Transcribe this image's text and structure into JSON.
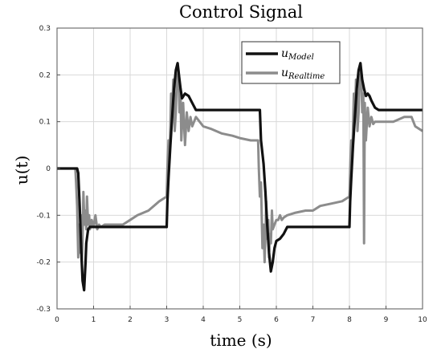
{
  "chart_data": {
    "type": "line",
    "title": "Control Signal",
    "xlabel": "time (s)",
    "ylabel": "u(t)",
    "xlim": [
      0,
      10
    ],
    "ylim": [
      -0.3,
      0.3
    ],
    "x_ticks": [
      "0",
      "1",
      "2",
      "3",
      "4",
      "5",
      "6",
      "7",
      "8",
      "9",
      "10"
    ],
    "y_ticks": [
      "-0.3",
      "-0.2",
      "-0.1",
      "0",
      "0.1",
      "0.2",
      "0.3"
    ],
    "grid": true,
    "legend_position": "top-right",
    "series": [
      {
        "name": "u",
        "name_sub": "Model",
        "color": "#111111",
        "x": [
          0,
          0.55,
          0.58,
          0.62,
          0.66,
          0.7,
          0.74,
          0.78,
          0.8,
          0.85,
          0.9,
          1.0,
          1.2,
          1.5,
          2.0,
          2.5,
          3.0,
          3.02,
          3.05,
          3.1,
          3.15,
          3.2,
          3.25,
          3.3,
          3.35,
          3.38,
          3.42,
          3.5,
          3.6,
          3.7,
          3.8,
          3.9,
          4.0,
          4.2,
          4.5,
          5.0,
          5.55,
          5.58,
          5.65,
          5.7,
          5.75,
          5.8,
          5.85,
          5.9,
          5.95,
          6.0,
          6.1,
          6.2,
          6.3,
          6.5,
          7.0,
          7.5,
          8.0,
          8.02,
          8.05,
          8.1,
          8.15,
          8.2,
          8.25,
          8.3,
          8.35,
          8.4,
          8.45,
          8.5,
          8.55,
          8.6,
          8.7,
          8.8,
          8.9,
          9.0,
          9.5,
          10.0
        ],
        "y": [
          0,
          0,
          -0.01,
          -0.08,
          -0.17,
          -0.24,
          -0.26,
          -0.2,
          -0.16,
          -0.13,
          -0.125,
          -0.125,
          -0.125,
          -0.125,
          -0.125,
          -0.125,
          -0.125,
          -0.07,
          -0.02,
          0.05,
          0.11,
          0.17,
          0.21,
          0.225,
          0.19,
          0.17,
          0.15,
          0.16,
          0.155,
          0.14,
          0.125,
          0.125,
          0.125,
          0.125,
          0.125,
          0.125,
          0.125,
          0.06,
          0.01,
          -0.05,
          -0.12,
          -0.18,
          -0.22,
          -0.2,
          -0.17,
          -0.155,
          -0.15,
          -0.14,
          -0.125,
          -0.125,
          -0.125,
          -0.125,
          -0.125,
          -0.07,
          -0.02,
          0.05,
          0.11,
          0.17,
          0.21,
          0.225,
          0.19,
          0.17,
          0.155,
          0.16,
          0.155,
          0.145,
          0.13,
          0.125,
          0.125,
          0.125,
          0.125,
          0.125
        ]
      },
      {
        "name": "u",
        "name_sub": "Realtime",
        "color": "#8c8c8c",
        "x": [
          0,
          0.5,
          0.52,
          0.55,
          0.58,
          0.6,
          0.62,
          0.65,
          0.68,
          0.7,
          0.72,
          0.75,
          0.78,
          0.8,
          0.82,
          0.85,
          0.88,
          0.9,
          0.95,
          1.0,
          1.05,
          1.1,
          1.15,
          1.2,
          1.3,
          1.5,
          1.8,
          2.0,
          2.2,
          2.5,
          2.8,
          3.0,
          3.02,
          3.05,
          3.08,
          3.1,
          3.12,
          3.15,
          3.18,
          3.2,
          3.22,
          3.25,
          3.28,
          3.3,
          3.32,
          3.35,
          3.38,
          3.4,
          3.45,
          3.5,
          3.55,
          3.6,
          3.65,
          3.7,
          3.8,
          3.9,
          4.0,
          4.2,
          4.5,
          4.8,
          5.0,
          5.3,
          5.5,
          5.52,
          5.55,
          5.58,
          5.6,
          5.62,
          5.65,
          5.68,
          5.7,
          5.72,
          5.75,
          5.78,
          5.8,
          5.82,
          5.85,
          5.88,
          5.9,
          5.95,
          6.0,
          6.05,
          6.1,
          6.15,
          6.2,
          6.3,
          6.5,
          6.8,
          7.0,
          7.2,
          7.5,
          7.8,
          8.0,
          8.02,
          8.05,
          8.08,
          8.1,
          8.12,
          8.15,
          8.18,
          8.2,
          8.22,
          8.25,
          8.28,
          8.3,
          8.32,
          8.35,
          8.38,
          8.4,
          8.42,
          8.45,
          8.5,
          8.55,
          8.6,
          8.65,
          8.7,
          8.8,
          9.0,
          9.2,
          9.5,
          9.7,
          9.8,
          10.0
        ],
        "y": [
          0,
          0,
          -0.03,
          -0.08,
          -0.19,
          -0.12,
          -0.18,
          -0.1,
          -0.2,
          -0.15,
          -0.05,
          -0.12,
          -0.09,
          -0.13,
          -0.06,
          -0.12,
          -0.1,
          -0.13,
          -0.11,
          -0.125,
          -0.1,
          -0.13,
          -0.12,
          -0.125,
          -0.12,
          -0.12,
          -0.12,
          -0.11,
          -0.1,
          -0.09,
          -0.07,
          -0.06,
          0.0,
          0.06,
          0.02,
          0.09,
          0.16,
          0.11,
          0.19,
          0.16,
          0.08,
          0.12,
          0.2,
          0.17,
          0.21,
          0.12,
          0.16,
          0.06,
          0.14,
          0.05,
          0.12,
          0.08,
          0.11,
          0.09,
          0.11,
          0.1,
          0.09,
          0.085,
          0.075,
          0.07,
          0.065,
          0.06,
          0.06,
          0.0,
          -0.06,
          -0.03,
          -0.1,
          -0.17,
          -0.12,
          -0.2,
          -0.15,
          -0.07,
          -0.15,
          -0.11,
          -0.19,
          -0.14,
          -0.16,
          -0.09,
          -0.13,
          -0.12,
          -0.11,
          -0.11,
          -0.1,
          -0.11,
          -0.105,
          -0.1,
          -0.095,
          -0.09,
          -0.09,
          -0.08,
          -0.075,
          -0.07,
          -0.06,
          0.0,
          0.06,
          0.02,
          0.09,
          0.16,
          0.11,
          0.19,
          0.16,
          0.08,
          0.12,
          0.2,
          0.17,
          0.21,
          0.12,
          0.16,
          -0.16,
          0.14,
          0.06,
          0.13,
          0.09,
          0.11,
          0.095,
          0.1,
          0.1,
          0.1,
          0.1,
          0.11,
          0.11,
          0.09,
          0.08
        ]
      }
    ]
  }
}
